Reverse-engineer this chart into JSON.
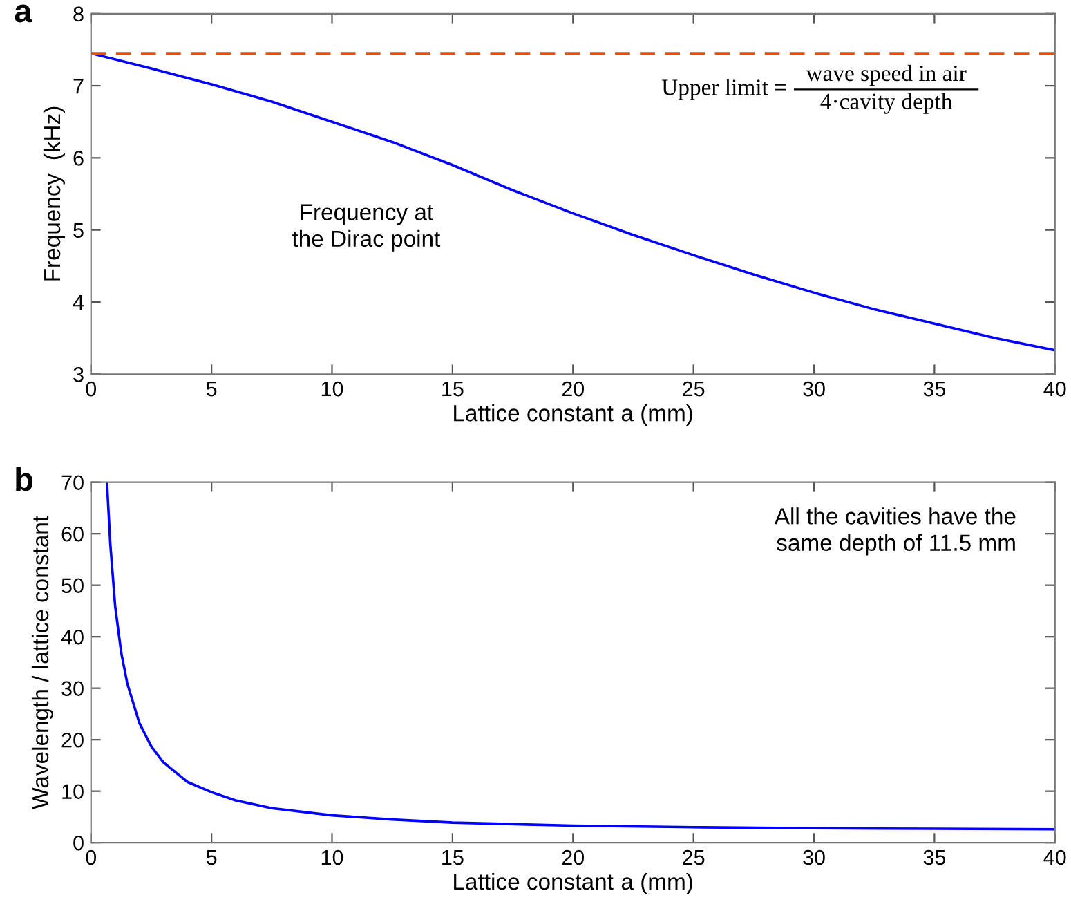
{
  "chart_data": [
    {
      "type": "line",
      "title": "a",
      "xlabel": "Lattice constant $_{}$a (mm)",
      "ylabel": "Frequency  (kHz)",
      "series": [
        {
          "color": "#0000ff",
          "x": [
            0,
            2.5,
            5,
            7.5,
            10,
            12.5,
            15,
            17.5,
            20,
            22.5,
            25,
            27.5,
            30,
            32.5,
            35,
            37.5,
            40
          ],
          "values": [
            7.45,
            7.24,
            7.02,
            6.78,
            6.5,
            6.22,
            5.9,
            5.55,
            5.23,
            4.93,
            4.65,
            4.38,
            4.13,
            3.9,
            3.7,
            3.5,
            3.33
          ]
        }
      ],
      "ref_lines": [
        {
          "axis": "y",
          "value": 7.45,
          "color": "#d95319",
          "line_style": "dashed"
        }
      ],
      "annotations": [
        "Upper limit =",
        "wave speed in air",
        "4·cavity depth",
        {
          "text": "Frequency at\nthe Dirac point",
          "x": 15,
          "y": 5.9
        }
      ],
      "xlim": [
        0,
        40
      ],
      "xticks": [
        0,
        5,
        10,
        15,
        20,
        25,
        30,
        35,
        40
      ],
      "ylim": [
        3,
        8
      ],
      "yticks": [
        3,
        4,
        5,
        6,
        7,
        8
      ],
      "grid": false
    },
    {
      "type": "line",
      "title": "b",
      "xlabel": "Lattice constant $_{}$a (mm)",
      "ylabel": "Wavelength / lattice constant",
      "series": [
        {
          "color": "#0000ff",
          "x": [
            0.66,
            0.8,
            1,
            1.25,
            1.5,
            2,
            2.5,
            3,
            4,
            5,
            6,
            7.5,
            10,
            12.5,
            15,
            20,
            25,
            30,
            35,
            40
          ],
          "values": [
            70,
            58,
            46,
            37,
            31,
            23.3,
            18.7,
            15.6,
            11.8,
            9.8,
            8.2,
            6.7,
            5.3,
            4.5,
            3.9,
            3.3,
            3.0,
            2.8,
            2.7,
            2.6
          ]
        }
      ],
      "annotations": [
        "All the cavities have the\nsame depth of 11.5 mm"
      ],
      "xlim": [
        0,
        40
      ],
      "xticks": [
        0,
        5,
        10,
        15,
        20,
        25,
        30,
        35,
        40
      ],
      "ylim": [
        0,
        70
      ],
      "yticks": [
        0,
        10,
        20,
        30,
        40,
        50,
        60,
        70
      ],
      "grid": false
    }
  ]
}
